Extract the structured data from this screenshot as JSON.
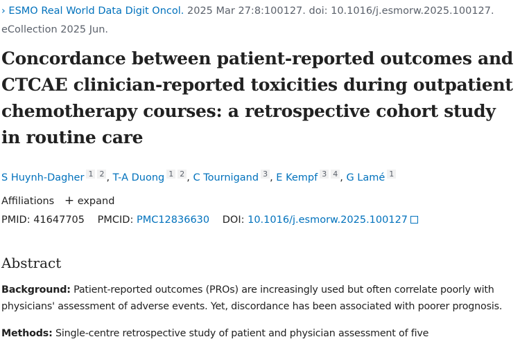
{
  "citation": {
    "journal": "ESMO Real World Data Digit Oncol.",
    "details": " 2025 Mar 27:8:100127. doi: 10.1016/j.esmorw.2025.100127. eCollection 2025 Jun.",
    "chevron_icon": "chevron-right"
  },
  "title": "Concordance between patient-reported outcomes and CTCAE clinician-reported toxicities during outpatient chemotherapy courses: a retrospective cohort study in routine care",
  "authors": [
    {
      "name": "S Huynh-Dagher",
      "affs": [
        "1",
        "2"
      ]
    },
    {
      "name": "T-A Duong",
      "affs": [
        "1",
        "2"
      ]
    },
    {
      "name": "C Tournigand",
      "affs": [
        "3"
      ]
    },
    {
      "name": "E Kempf",
      "affs": [
        "3",
        "4"
      ]
    },
    {
      "name": "G Lamé",
      "affs": [
        "1"
      ]
    }
  ],
  "affiliations": {
    "label": "Affiliations",
    "expand": "expand"
  },
  "identifiers": {
    "pmid_label": "PMID:",
    "pmid": "41647705",
    "pmcid_label": "PMCID:",
    "pmcid": "PMC12836630",
    "doi_label": "DOI:",
    "doi": "10.1016/j.esmorw.2025.100127"
  },
  "abstract": {
    "heading": "Abstract",
    "background_label": "Background:",
    "background": " Patient-reported outcomes (PROs) are increasingly used but often correlate poorly with physicians' assessment of adverse events. Yet, discordance has been associated with poorer prognosis.",
    "methods_label": "Methods:",
    "methods": " Single-centre retrospective study of patient and physician assessment of five"
  }
}
